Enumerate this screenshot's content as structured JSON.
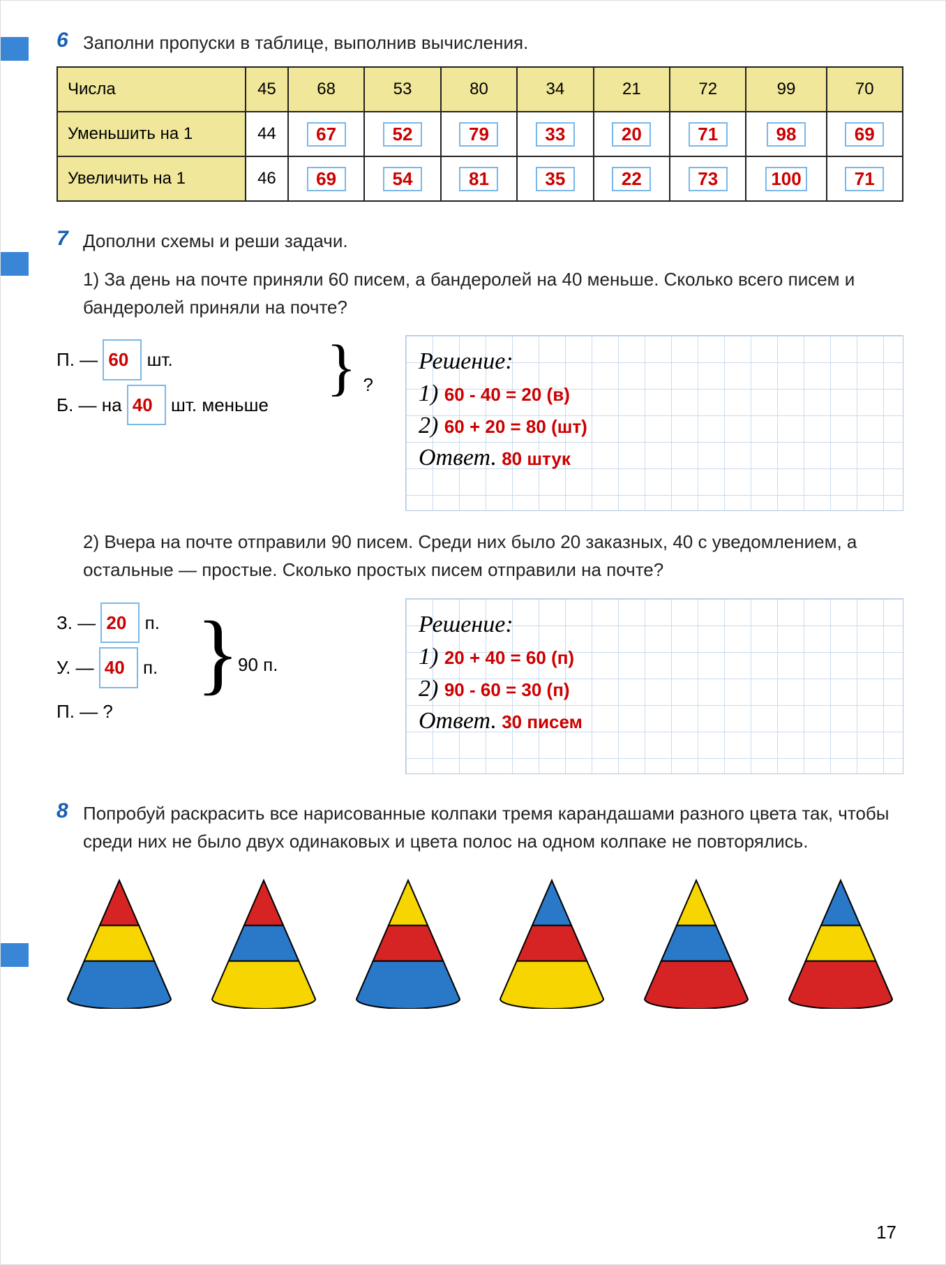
{
  "page_number": "17",
  "ex6": {
    "num": "6",
    "text": "Заполни пропуски в таблице, выполнив вычисления.",
    "table": {
      "row_labels": [
        "Числа",
        "Уменьшить на 1",
        "Увеличить на 1"
      ],
      "numbers": [
        "45",
        "68",
        "53",
        "80",
        "34",
        "21",
        "72",
        "99",
        "70"
      ],
      "minus1_given": "44",
      "minus1_answers": [
        "67",
        "52",
        "79",
        "33",
        "20",
        "71",
        "98",
        "69"
      ],
      "plus1_given": "46",
      "plus1_answers": [
        "69",
        "54",
        "81",
        "35",
        "22",
        "73",
        "100",
        "71"
      ]
    }
  },
  "ex7": {
    "num": "7",
    "text": "Дополни схемы и реши задачи.",
    "p1": {
      "prompt": "1) За день на почте приняли 60 писем, а бандеролей на 40 меньше. Сколько всего писем и бандеролей приняли на почте?",
      "left": {
        "l1_pre": "П. — ",
        "l1_val": "60",
        "l1_post": " шт.",
        "l2_pre": "Б. — на ",
        "l2_val": "40",
        "l2_post": " шт. меньше",
        "bracket_q": "?"
      },
      "sol_title": "Решение:",
      "sol1_pre": "1) ",
      "sol1_ans": "60 - 40 = 20 (в)",
      "sol2_pre": "2) ",
      "sol2_ans": "60 + 20 = 80 (шт)",
      "ans_label": "Ответ.",
      "ans_val": "80 штук"
    },
    "p2": {
      "prompt": "2) Вчера на почте отправили 90 писем. Среди них было 20 заказных, 40 с уведомлением, а остальные — простые. Сколько простых писем отправили на почте?",
      "left": {
        "l1_pre": "З. — ",
        "l1_val": "20",
        "l1_post": " п.",
        "l2_pre": "У. — ",
        "l2_val": "40",
        "l2_post": " п.",
        "l3": "П. — ?",
        "bracket_total": "90 п."
      },
      "sol_title": "Решение:",
      "sol1_pre": "1) ",
      "sol1_ans": "20 + 40 = 60 (п)",
      "sol2_pre": "2) ",
      "sol2_ans": "90 - 60 = 30 (п)",
      "ans_label": "Ответ.",
      "ans_val": "30 писем"
    }
  },
  "ex8": {
    "num": "8",
    "text": "Попробуй раскрасить все нарисованные колпаки тремя карандашами разного цвета так, чтобы среди них не было двух одинаковых и цвета полос на одном колпаке не повторялись.",
    "cones_colors": {
      "red": "#d62424",
      "yellow": "#f6d500",
      "blue": "#2a78c8"
    },
    "cones": [
      [
        "red",
        "yellow",
        "blue"
      ],
      [
        "red",
        "blue",
        "yellow"
      ],
      [
        "yellow",
        "red",
        "blue"
      ],
      [
        "blue",
        "red",
        "yellow"
      ],
      [
        "yellow",
        "blue",
        "red"
      ],
      [
        "blue",
        "yellow",
        "red"
      ]
    ]
  }
}
